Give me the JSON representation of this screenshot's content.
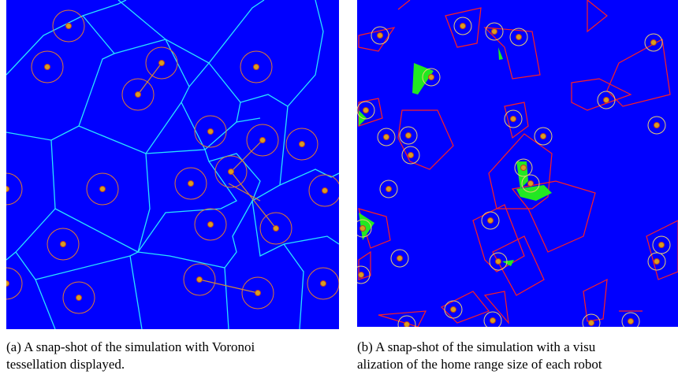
{
  "figure": {
    "captions": [
      {
        "lines": [
          "(a) A snap-shot of the simulation with Voronoi",
          "tessellation displayed."
        ]
      },
      {
        "lines": [
          "(b) A snap-shot of the simulation with a visu",
          "alization of the home range size of each robot"
        ]
      }
    ]
  }
}
